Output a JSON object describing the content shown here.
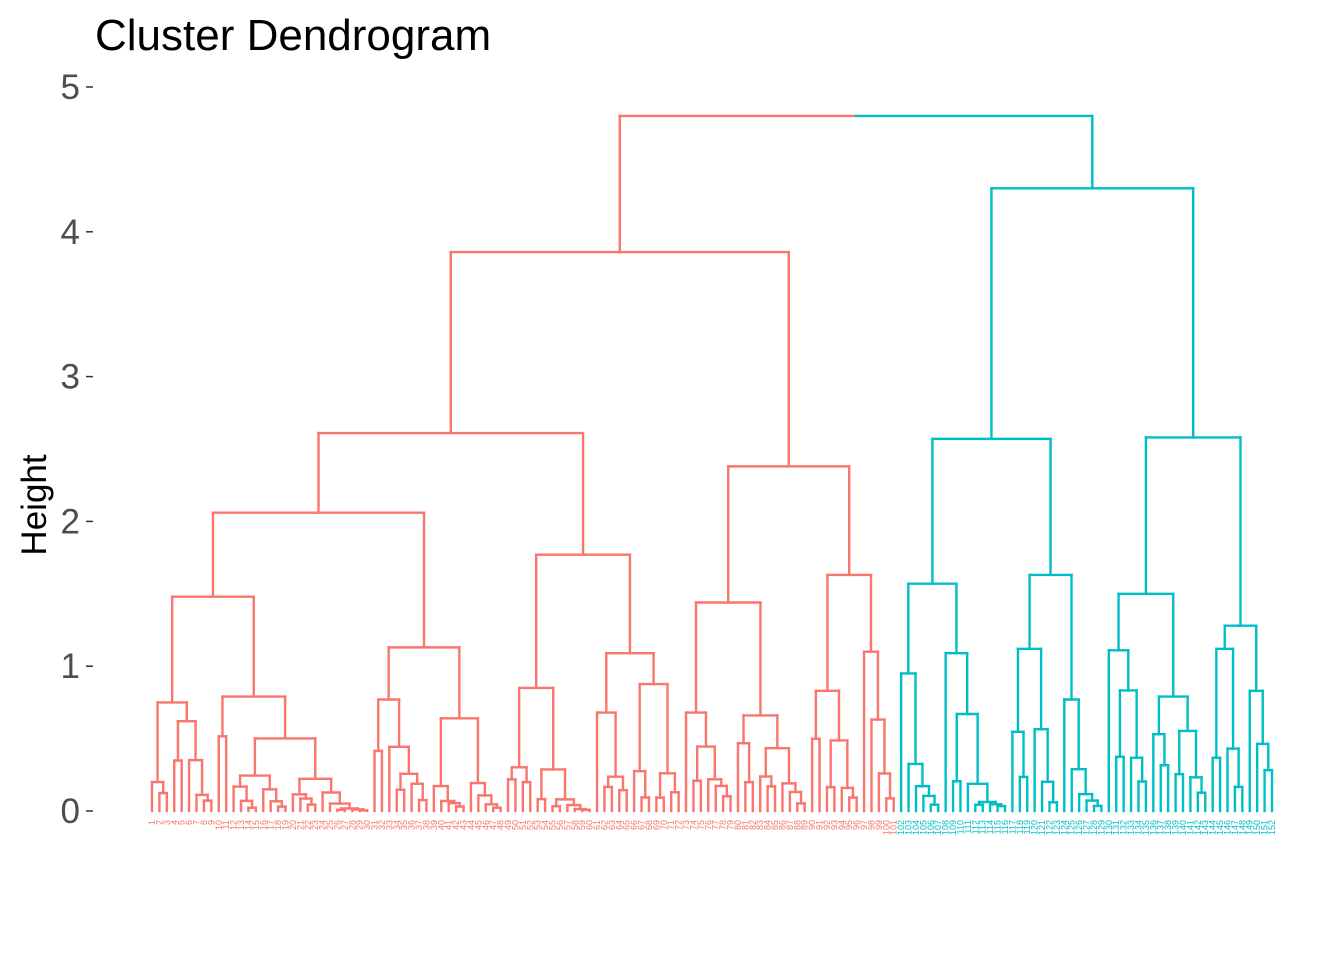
{
  "chart_data": {
    "type": "dendrogram",
    "title": "Cluster Dendrogram",
    "xlabel": "",
    "ylabel": "Height",
    "ylim": [
      0,
      5
    ],
    "yticks": [
      0,
      1,
      2,
      3,
      4,
      5
    ],
    "cluster_colors": [
      "#F8766D",
      "#00BFC4"
    ],
    "leaf_count": {
      "cluster_1": 101,
      "cluster_2": 51
    },
    "merge_heights": {
      "root": 4.8,
      "cluster_1": 3.86,
      "cluster_2": 4.3,
      "cluster_1_children": [
        2.61,
        2.38
      ],
      "cluster_2_children": [
        2.57,
        2.58
      ]
    }
  }
}
